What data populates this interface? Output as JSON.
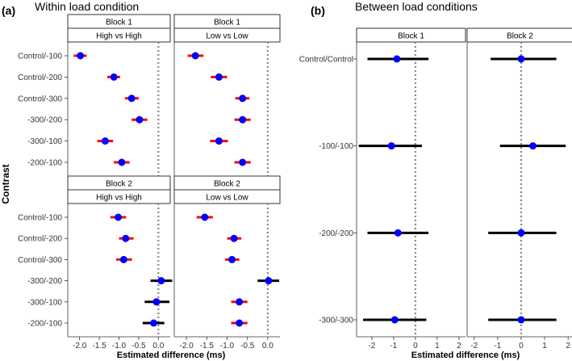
{
  "panel_labels": {
    "a": "(a)",
    "b": "(b)"
  },
  "titles": {
    "a": "Within load condition",
    "b": "Between load conditions"
  },
  "axis_labels": {
    "x": "Estimated difference (ms)",
    "y": "Contrast"
  },
  "colors": {
    "point": "#0000ff",
    "ci_sig": "#ff0000",
    "ci_ns": "#000000",
    "ref_line": "#888888"
  },
  "chart_data": [
    {
      "type": "forest",
      "id": "a_block1_high",
      "strip": [
        "Block 1",
        "High vs High"
      ],
      "categories": [
        "Control/-100",
        "Control/-200",
        "Control/-300",
        "-300/-200",
        "-300/-100",
        "-200/-100"
      ],
      "estimates": [
        -1.98,
        -1.13,
        -0.68,
        -0.48,
        -1.35,
        -0.93
      ],
      "ci_low": [
        -2.15,
        -1.3,
        -0.85,
        -0.68,
        -1.55,
        -1.13
      ],
      "ci_high": [
        -1.82,
        -0.97,
        -0.5,
        -0.28,
        -1.15,
        -0.73
      ],
      "significant": [
        true,
        true,
        true,
        true,
        true,
        true
      ],
      "xlim": [
        -2.3,
        0.3
      ],
      "xticks": [],
      "xtick_labels": []
    },
    {
      "type": "forest",
      "id": "a_block1_low",
      "strip": [
        "Block 1",
        "Low vs Low"
      ],
      "categories": [
        "Control/-100",
        "Control/-200",
        "Control/-300",
        "-300/-200",
        "-300/-100",
        "-200/-100"
      ],
      "estimates": [
        -1.78,
        -1.2,
        -0.62,
        -0.62,
        -1.2,
        -0.62
      ],
      "ci_low": [
        -1.97,
        -1.4,
        -0.8,
        -0.82,
        -1.42,
        -0.82
      ],
      "ci_high": [
        -1.58,
        -1.0,
        -0.45,
        -0.42,
        -0.98,
        -0.42
      ],
      "significant": [
        true,
        true,
        true,
        true,
        true,
        true
      ],
      "xlim": [
        -2.3,
        0.3
      ],
      "xticks": [],
      "xtick_labels": []
    },
    {
      "type": "forest",
      "id": "a_block2_high",
      "strip": [
        "Block 2",
        "High vs High"
      ],
      "categories": [
        "Control/-100",
        "Control/-200",
        "Control/-300",
        "-300/-200",
        "-300/-100",
        "-200/-100"
      ],
      "estimates": [
        -1.02,
        -0.83,
        -0.88,
        0.07,
        -0.05,
        -0.12
      ],
      "ci_low": [
        -1.22,
        -1.0,
        -1.07,
        -0.2,
        -0.35,
        -0.4
      ],
      "ci_high": [
        -0.82,
        -0.63,
        -0.67,
        0.35,
        0.28,
        0.15
      ],
      "significant": [
        true,
        true,
        true,
        false,
        false,
        false
      ],
      "xlim": [
        -2.3,
        0.3
      ],
      "xticks": [
        -2.0,
        -1.5,
        -1.0,
        -0.5,
        0.0
      ],
      "xtick_labels": [
        "-2.0",
        "-1.5",
        "-1.0",
        "-0.5",
        "0.0"
      ]
    },
    {
      "type": "forest",
      "id": "a_block2_low",
      "strip": [
        "Block 2",
        "Low vs Low"
      ],
      "categories": [
        "Control/-100",
        "Control/-200",
        "Control/-300",
        "-300/-200",
        "-300/-100",
        "-200/-100"
      ],
      "estimates": [
        -1.55,
        -0.83,
        -0.88,
        0.02,
        -0.7,
        -0.7
      ],
      "ci_low": [
        -1.75,
        -1.0,
        -1.05,
        -0.25,
        -0.9,
        -0.9
      ],
      "ci_high": [
        -1.35,
        -0.65,
        -0.7,
        0.28,
        -0.5,
        -0.5
      ],
      "significant": [
        true,
        true,
        true,
        false,
        true,
        true
      ],
      "xlim": [
        -2.3,
        0.3
      ],
      "xticks": [
        -2.0,
        -1.5,
        -1.0,
        -0.5,
        0.0
      ],
      "xtick_labels": [
        "-2.0",
        "-1.5",
        "-1.0",
        "-0.5",
        "0.0"
      ]
    },
    {
      "type": "forest",
      "id": "b_block1",
      "strip": [
        "Block 1"
      ],
      "categories": [
        "Control/Control",
        "-100/-100",
        "-200/-200",
        "-300/-300"
      ],
      "estimates": [
        -0.85,
        -1.1,
        -0.8,
        -0.95
      ],
      "ci_low": [
        -2.2,
        -2.6,
        -2.2,
        -2.4
      ],
      "ci_high": [
        0.6,
        0.3,
        0.6,
        0.5
      ],
      "significant": [
        false,
        false,
        false,
        false
      ],
      "xlim": [
        -2.7,
        2.3
      ],
      "xticks": [
        -2,
        -1,
        0,
        1,
        2
      ],
      "xtick_labels": [
        "-2",
        "-1",
        "0",
        "1",
        "2"
      ]
    },
    {
      "type": "forest",
      "id": "b_block2",
      "strip": [
        "Block 2"
      ],
      "categories": [
        "Control/Control",
        "-100/-100",
        "-200/-200",
        "-300/-300"
      ],
      "estimates": [
        0.0,
        0.5,
        0.0,
        0.0
      ],
      "ci_low": [
        -1.3,
        -0.9,
        -1.4,
        -1.4
      ],
      "ci_high": [
        1.5,
        1.9,
        1.5,
        1.5
      ],
      "significant": [
        false,
        false,
        false,
        false
      ],
      "xlim": [
        -2.3,
        2.2
      ],
      "xticks": [
        -2,
        -1,
        0,
        1,
        2
      ],
      "xtick_labels": [
        "-2",
        "-1",
        "0",
        "1",
        "2"
      ]
    }
  ]
}
